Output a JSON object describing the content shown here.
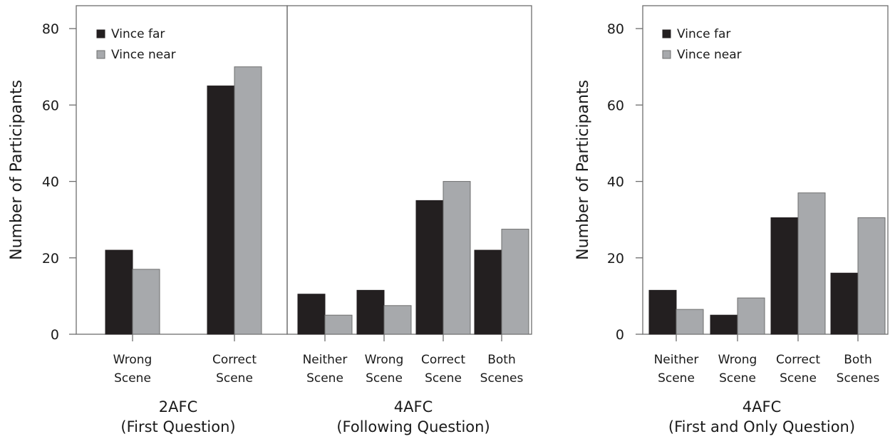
{
  "colors": {
    "far": "#231f20",
    "near": "#a7a9ac",
    "frame": "#6e6e6e"
  },
  "chart_data": [
    {
      "type": "bar",
      "panel": "left",
      "ylabel": "Number of Participants",
      "ylim": [
        0,
        86
      ],
      "yticks": [
        0,
        20,
        40,
        60,
        80
      ],
      "legend": [
        "Vince far",
        "Vince near"
      ],
      "legend_position": "top-left",
      "groups": [
        {
          "label": [
            "2AFC",
            "(First Question)"
          ],
          "categories": [
            [
              "Wrong",
              "Scene"
            ],
            [
              "Correct",
              "Scene"
            ]
          ],
          "series": [
            {
              "name": "Vince far",
              "values": [
                22,
                65
              ]
            },
            {
              "name": "Vince near",
              "values": [
                17,
                70
              ]
            }
          ]
        },
        {
          "label": [
            "4AFC",
            "(Following Question)"
          ],
          "categories": [
            [
              "Neither",
              "Scene"
            ],
            [
              "Wrong",
              "Scene"
            ],
            [
              "Correct",
              "Scene"
            ],
            [
              "Both",
              "Scenes"
            ]
          ],
          "series": [
            {
              "name": "Vince far",
              "values": [
                10.5,
                11.5,
                35,
                22
              ]
            },
            {
              "name": "Vince near",
              "values": [
                5,
                7.5,
                40,
                27.5
              ]
            }
          ]
        }
      ]
    },
    {
      "type": "bar",
      "panel": "right",
      "ylabel": "Number of Participants",
      "ylim": [
        0,
        86
      ],
      "yticks": [
        0,
        20,
        40,
        60,
        80
      ],
      "legend": [
        "Vince far",
        "Vince near"
      ],
      "legend_position": "top-left",
      "groups": [
        {
          "label": [
            "4AFC",
            "(First and Only Question)"
          ],
          "categories": [
            [
              "Neither",
              "Scene"
            ],
            [
              "Wrong",
              "Scene"
            ],
            [
              "Correct",
              "Scene"
            ],
            [
              "Both",
              "Scenes"
            ]
          ],
          "series": [
            {
              "name": "Vince far",
              "values": [
                11.5,
                5,
                30.5,
                16
              ]
            },
            {
              "name": "Vince near",
              "values": [
                6.5,
                9.5,
                37,
                30.5
              ]
            }
          ]
        }
      ]
    }
  ]
}
